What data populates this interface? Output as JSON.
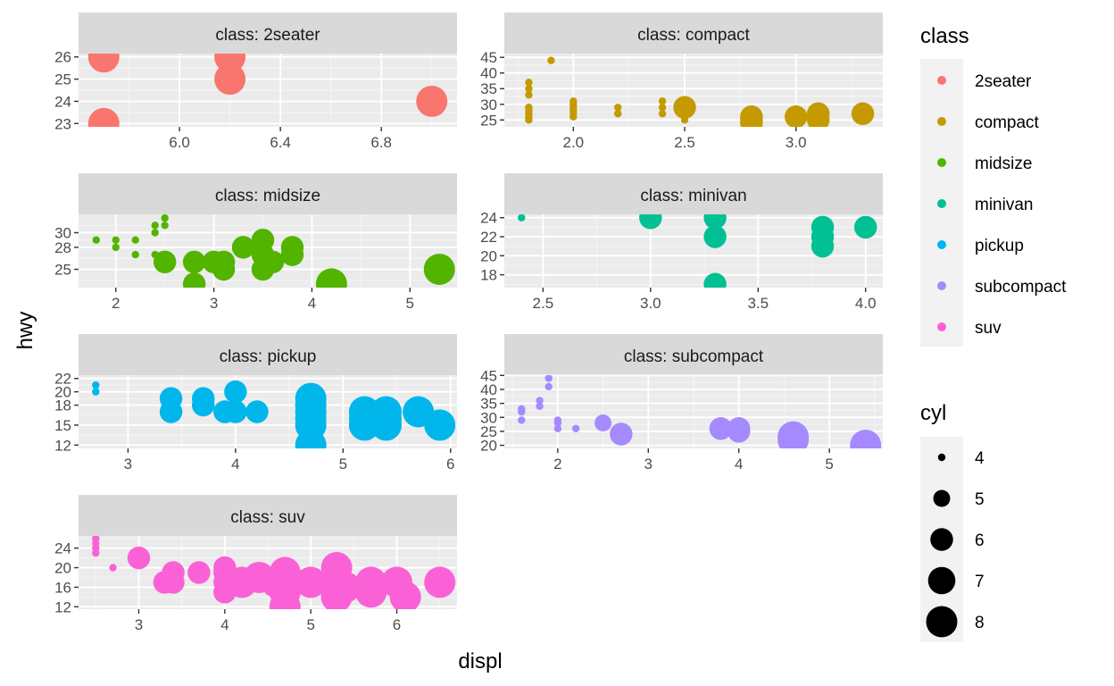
{
  "chart_data": {
    "type": "scatter",
    "facet_by": "class",
    "strip_prefix": "class: ",
    "xlabel": "displ",
    "ylabel": "hwy",
    "size_by": "cyl",
    "grid": true,
    "scales": "free",
    "legend_position": "right",
    "legends": {
      "color": {
        "title": "class",
        "entries": [
          {
            "label": "2seater",
            "color": "#F8766D"
          },
          {
            "label": "compact",
            "color": "#C49A00"
          },
          {
            "label": "midsize",
            "color": "#53B400"
          },
          {
            "label": "minivan",
            "color": "#00C094"
          },
          {
            "label": "pickup",
            "color": "#00B6EB"
          },
          {
            "label": "subcompact",
            "color": "#A58AFF"
          },
          {
            "label": "suv",
            "color": "#FB61D7"
          }
        ]
      },
      "size": {
        "title": "cyl",
        "entries": [
          {
            "label": "4",
            "value": 4
          },
          {
            "label": "5",
            "value": 5
          },
          {
            "label": "6",
            "value": 6
          },
          {
            "label": "7",
            "value": 7
          },
          {
            "label": "8",
            "value": 8
          }
        ]
      }
    },
    "panels": [
      {
        "class": "2seater",
        "color": "#F8766D",
        "xlim": [
          5.6,
          7.1
        ],
        "xticks": [
          6.0,
          6.4,
          6.8
        ],
        "xtick_labels": [
          "6.0",
          "6.4",
          "6.8"
        ],
        "ylim": [
          22.85,
          26.15
        ],
        "yticks": [
          23,
          24,
          25,
          26
        ],
        "ytick_labels": [
          "23",
          "24",
          "25",
          "26"
        ],
        "points": [
          [
            5.7,
            26,
            8
          ],
          [
            5.7,
            23,
            8
          ],
          [
            6.2,
            26,
            8
          ],
          [
            6.2,
            25,
            8
          ],
          [
            7.0,
            24,
            8
          ]
        ]
      },
      {
        "class": "compact",
        "color": "#C49A00",
        "xlim": [
          1.69,
          3.39
        ],
        "xticks": [
          2.0,
          2.5,
          3.0
        ],
        "xtick_labels": [
          "2.0",
          "2.5",
          "3.0"
        ],
        "ylim": [
          22.8,
          46.2
        ],
        "yticks": [
          25,
          30,
          35,
          40,
          45
        ],
        "ytick_labels": [
          "25",
          "30",
          "35",
          "40",
          "45"
        ],
        "points": [
          [
            1.8,
            29,
            4
          ],
          [
            1.8,
            29,
            4
          ],
          [
            1.8,
            26,
            4
          ],
          [
            1.8,
            25,
            4
          ],
          [
            1.8,
            28,
            4
          ],
          [
            1.8,
            27,
            4
          ],
          [
            1.8,
            33,
            4
          ],
          [
            1.8,
            35,
            4
          ],
          [
            1.8,
            37,
            4
          ],
          [
            1.9,
            44,
            4
          ],
          [
            2.0,
            31,
            4
          ],
          [
            2.0,
            30,
            4
          ],
          [
            2.0,
            28,
            4
          ],
          [
            2.0,
            26,
            4
          ],
          [
            2.0,
            29,
            4
          ],
          [
            2.0,
            27,
            4
          ],
          [
            2.2,
            29,
            4
          ],
          [
            2.2,
            27,
            4
          ],
          [
            2.4,
            31,
            4
          ],
          [
            2.4,
            29,
            4
          ],
          [
            2.4,
            27,
            4
          ],
          [
            2.5,
            25,
            4
          ],
          [
            2.5,
            29,
            6
          ],
          [
            2.8,
            26,
            6
          ],
          [
            2.8,
            25,
            6
          ],
          [
            2.8,
            24,
            6
          ],
          [
            3.0,
            26,
            6
          ],
          [
            3.1,
            27,
            6
          ],
          [
            3.1,
            25,
            6
          ],
          [
            3.3,
            27,
            6
          ]
        ]
      },
      {
        "class": "midsize",
        "color": "#53B400",
        "xlim": [
          1.62,
          5.48
        ],
        "xticks": [
          2,
          3,
          4,
          5
        ],
        "xtick_labels": [
          "2",
          "3",
          "4",
          "5"
        ],
        "ylim": [
          22.5,
          32.5
        ],
        "yticks": [
          25,
          28,
          30
        ],
        "ytick_labels": [
          "25",
          "28",
          "30"
        ],
        "points": [
          [
            1.8,
            29,
            4
          ],
          [
            2.0,
            29,
            4
          ],
          [
            2.0,
            28,
            4
          ],
          [
            2.2,
            29,
            4
          ],
          [
            2.2,
            27,
            4
          ],
          [
            2.4,
            31,
            4
          ],
          [
            2.4,
            30,
            4
          ],
          [
            2.4,
            27,
            4
          ],
          [
            2.5,
            32,
            4
          ],
          [
            2.5,
            31,
            4
          ],
          [
            2.5,
            27,
            4
          ],
          [
            2.5,
            26,
            6
          ],
          [
            2.8,
            26,
            6
          ],
          [
            2.8,
            23,
            6
          ],
          [
            3.0,
            26,
            6
          ],
          [
            3.1,
            26,
            6
          ],
          [
            3.1,
            25,
            6
          ],
          [
            3.3,
            28,
            6
          ],
          [
            3.5,
            29,
            6
          ],
          [
            3.5,
            27,
            6
          ],
          [
            3.5,
            25,
            6
          ],
          [
            3.6,
            26,
            6
          ],
          [
            3.8,
            28,
            6
          ],
          [
            3.8,
            27,
            6
          ],
          [
            4.2,
            23,
            8
          ],
          [
            5.3,
            25,
            8
          ]
        ]
      },
      {
        "class": "minivan",
        "color": "#00C094",
        "xlim": [
          2.32,
          4.08
        ],
        "xticks": [
          2.5,
          3.0,
          3.5,
          4.0
        ],
        "xtick_labels": [
          "2.5",
          "3.0",
          "3.5",
          "4.0"
        ],
        "ylim": [
          16.65,
          24.35
        ],
        "yticks": [
          18,
          20,
          22,
          24
        ],
        "ytick_labels": [
          "18",
          "20",
          "22",
          "24"
        ],
        "points": [
          [
            2.4,
            24,
            4
          ],
          [
            3.0,
            24,
            6
          ],
          [
            3.3,
            24,
            6
          ],
          [
            3.3,
            22,
            6
          ],
          [
            3.3,
            17,
            6
          ],
          [
            3.8,
            23,
            6
          ],
          [
            3.8,
            22,
            6
          ],
          [
            3.8,
            21,
            6
          ],
          [
            4.0,
            23,
            6
          ]
        ]
      },
      {
        "class": "pickup",
        "color": "#00B6EB",
        "xlim": [
          2.54,
          6.06
        ],
        "xticks": [
          3,
          4,
          5,
          6
        ],
        "xtick_labels": [
          "3",
          "4",
          "5",
          "6"
        ],
        "ylim": [
          11.5,
          22.5
        ],
        "yticks": [
          12,
          15,
          18,
          20,
          22
        ],
        "ytick_labels": [
          "12",
          "15",
          "18",
          "20",
          "22"
        ],
        "points": [
          [
            2.7,
            21,
            4
          ],
          [
            2.7,
            20,
            4
          ],
          [
            3.4,
            19,
            6
          ],
          [
            3.4,
            17,
            6
          ],
          [
            3.7,
            19,
            6
          ],
          [
            3.7,
            18,
            6
          ],
          [
            3.9,
            17,
            6
          ],
          [
            4.0,
            20,
            6
          ],
          [
            4.0,
            17,
            6
          ],
          [
            4.2,
            17,
            6
          ],
          [
            4.7,
            19,
            8
          ],
          [
            4.7,
            18,
            8
          ],
          [
            4.7,
            17,
            8
          ],
          [
            4.7,
            16,
            8
          ],
          [
            4.7,
            15,
            8
          ],
          [
            4.7,
            12,
            8
          ],
          [
            5.2,
            17,
            8
          ],
          [
            5.2,
            16,
            8
          ],
          [
            5.2,
            15,
            8
          ],
          [
            5.4,
            17,
            8
          ],
          [
            5.4,
            16,
            8
          ],
          [
            5.4,
            15,
            8
          ],
          [
            5.7,
            17,
            8
          ],
          [
            5.9,
            15,
            8
          ]
        ]
      },
      {
        "class": "subcompact",
        "color": "#A58AFF",
        "xlim": [
          1.41,
          5.59
        ],
        "xticks": [
          2,
          3,
          4,
          5
        ],
        "xtick_labels": [
          "2",
          "3",
          "4",
          "5"
        ],
        "ylim": [
          18.9,
          45.1
        ],
        "yticks": [
          20,
          25,
          30,
          35,
          40,
          45
        ],
        "ytick_labels": [
          "20",
          "25",
          "30",
          "35",
          "40",
          "45"
        ],
        "points": [
          [
            1.6,
            33,
            4
          ],
          [
            1.6,
            32,
            4
          ],
          [
            1.6,
            29,
            4
          ],
          [
            1.8,
            36,
            4
          ],
          [
            1.8,
            34,
            4
          ],
          [
            1.9,
            44,
            4
          ],
          [
            1.9,
            41,
            4
          ],
          [
            2.0,
            29,
            4
          ],
          [
            2.0,
            28,
            4
          ],
          [
            2.0,
            26,
            4
          ],
          [
            2.2,
            26,
            4
          ],
          [
            2.5,
            28,
            5
          ],
          [
            2.7,
            24,
            6
          ],
          [
            3.8,
            26,
            6
          ],
          [
            4.0,
            26,
            6
          ],
          [
            4.0,
            25,
            6
          ],
          [
            4.6,
            23,
            8
          ],
          [
            4.6,
            22,
            8
          ],
          [
            5.4,
            20,
            8
          ]
        ]
      },
      {
        "class": "suv",
        "color": "#FB61D7",
        "xlim": [
          2.3,
          6.7
        ],
        "xticks": [
          3,
          4,
          5,
          6
        ],
        "xtick_labels": [
          "3",
          "4",
          "5",
          "6"
        ],
        "ylim": [
          11.5,
          26.5
        ],
        "yticks": [
          12,
          16,
          20,
          24
        ],
        "ytick_labels": [
          "12",
          "16",
          "20",
          "24"
        ],
        "points": [
          [
            2.5,
            26,
            4
          ],
          [
            2.5,
            25,
            4
          ],
          [
            2.5,
            24,
            4
          ],
          [
            2.5,
            23,
            4
          ],
          [
            2.7,
            20,
            4
          ],
          [
            3.0,
            22,
            6
          ],
          [
            3.3,
            17,
            6
          ],
          [
            3.4,
            19,
            6
          ],
          [
            3.4,
            17,
            6
          ],
          [
            3.7,
            19,
            6
          ],
          [
            4.0,
            20,
            6
          ],
          [
            4.0,
            19,
            6
          ],
          [
            4.0,
            17,
            6
          ],
          [
            4.0,
            15,
            6
          ],
          [
            4.2,
            17,
            8
          ],
          [
            4.4,
            18,
            8
          ],
          [
            4.6,
            17,
            8
          ],
          [
            4.7,
            19,
            8
          ],
          [
            4.7,
            17,
            8
          ],
          [
            4.7,
            15,
            8
          ],
          [
            4.7,
            12,
            8
          ],
          [
            5.0,
            17,
            8
          ],
          [
            5.3,
            20,
            8
          ],
          [
            5.3,
            17,
            8
          ],
          [
            5.3,
            15,
            8
          ],
          [
            5.3,
            14,
            8
          ],
          [
            5.4,
            16,
            8
          ],
          [
            5.7,
            17,
            8
          ],
          [
            5.7,
            15,
            8
          ],
          [
            6.0,
            17,
            8
          ],
          [
            6.1,
            14,
            8
          ],
          [
            6.5,
            17,
            8
          ]
        ]
      }
    ]
  }
}
